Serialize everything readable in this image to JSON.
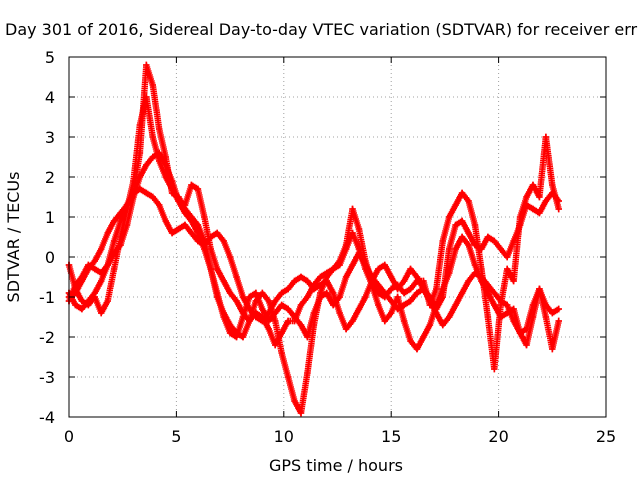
{
  "chart_data": {
    "type": "scatter",
    "title": "Day 301 of 2016, Sidereal Day-to-day VTEC variation (SDTVAR) for receiver err",
    "xlabel": "GPS time / hours",
    "ylabel": "SDTVAR / TECUs",
    "xlim": [
      0,
      25
    ],
    "ylim": [
      -4,
      5
    ],
    "x_ticks": [
      "0",
      "5",
      "10",
      "15",
      "20",
      "25"
    ],
    "y_ticks": [
      "-4",
      "-3",
      "-2",
      "-1",
      "0",
      "1",
      "2",
      "3",
      "4",
      "5"
    ],
    "grid": true,
    "marker": "+",
    "color": "#ff0000",
    "series": [
      {
        "x": [
          0.0,
          0.3,
          0.6,
          0.9,
          1.2,
          1.5,
          1.8,
          2.1,
          2.4,
          2.7,
          3.0,
          3.3,
          3.6,
          3.9,
          4.2,
          4.5,
          4.8,
          5.1,
          5.4,
          5.7,
          6.0,
          6.3,
          6.6,
          6.9,
          7.2,
          7.5,
          7.8,
          8.1,
          8.4,
          8.7,
          9.0,
          9.3,
          9.6,
          9.9,
          10.2,
          10.5,
          10.8,
          11.1,
          11.4,
          11.7,
          12.0,
          12.3,
          12.6,
          12.9,
          13.2,
          13.5,
          13.8,
          14.1,
          14.4,
          14.7,
          15.0,
          15.3,
          15.6,
          15.9,
          16.2,
          16.5,
          16.8,
          17.1,
          17.4,
          17.7,
          18.0,
          18.3,
          18.6,
          18.9,
          19.2,
          19.5,
          19.8,
          20.1,
          20.4,
          20.7,
          21.0,
          21.3,
          21.6,
          21.9,
          22.2,
          22.5,
          22.8
        ],
        "y": [
          -1.0,
          -0.9,
          -0.6,
          -0.3,
          -0.1,
          0.2,
          0.6,
          0.9,
          1.1,
          1.3,
          1.6,
          2.6,
          4.8,
          4.3,
          3.2,
          2.5,
          1.6,
          1.5,
          1.2,
          1.0,
          0.8,
          0.4,
          -0.3,
          -1.0,
          -1.4,
          -1.7,
          -1.9,
          -2.0,
          -1.6,
          -1.1,
          -0.9,
          -1.1,
          -1.6,
          -2.4,
          -3.0,
          -3.6,
          -3.9,
          -2.9,
          -1.7,
          -0.9,
          -0.5,
          -0.3,
          -0.1,
          0.3,
          1.2,
          0.7,
          -0.1,
          -0.6,
          -0.9,
          -1.0,
          -0.8,
          -0.7,
          -0.9,
          -0.8,
          -0.6,
          -0.6,
          -1.2,
          -0.8,
          0.4,
          1.0,
          1.3,
          1.6,
          1.4,
          0.8,
          -0.3,
          -1.5,
          -2.8,
          -1.2,
          -0.3,
          -0.6,
          1.0,
          1.5,
          1.8,
          1.5,
          3.0,
          1.8,
          1.2
        ]
      },
      {
        "x": [
          0.0,
          0.3,
          0.6,
          0.9,
          1.2,
          1.5,
          1.8,
          2.1,
          2.4,
          2.7,
          3.0,
          3.3,
          3.6,
          3.9,
          4.2,
          4.5,
          4.8,
          5.1,
          5.4,
          5.7,
          6.0,
          6.3,
          6.6,
          6.9,
          7.2,
          7.5,
          7.8,
          8.1,
          8.4,
          8.7,
          9.0,
          9.3,
          9.6,
          9.9,
          10.2,
          10.5,
          10.8,
          11.1,
          11.4,
          11.7,
          12.0,
          12.3,
          12.6,
          12.9,
          13.2,
          13.5,
          13.8,
          14.1,
          14.4,
          14.7,
          15.0,
          15.3,
          15.6,
          15.9,
          16.2,
          16.5,
          16.8,
          17.1,
          17.4,
          17.7,
          18.0,
          18.3,
          18.6,
          18.9,
          19.2,
          19.5,
          19.8,
          20.1,
          20.4,
          20.7,
          21.0,
          21.3,
          21.6,
          21.9,
          22.2,
          22.5,
          22.8
        ],
        "y": [
          -0.2,
          -0.8,
          -1.1,
          -1.2,
          -1.0,
          -1.4,
          -1.1,
          -0.3,
          0.5,
          1.2,
          1.9,
          3.3,
          4.0,
          3.0,
          2.4,
          2.0,
          1.7,
          1.4,
          1.3,
          1.8,
          1.7,
          1.0,
          0.2,
          -0.3,
          -0.6,
          -0.9,
          -1.1,
          -1.4,
          -1.6,
          -1.4,
          -1.5,
          -1.8,
          -2.2,
          -1.9,
          -1.6,
          -1.6,
          -1.2,
          -1.0,
          -0.7,
          -0.5,
          -0.4,
          -0.3,
          -0.2,
          0.2,
          0.6,
          0.2,
          -0.3,
          -0.7,
          -1.2,
          -1.6,
          -1.4,
          -1.0,
          -1.6,
          -2.1,
          -2.3,
          -2.0,
          -1.7,
          -1.2,
          -0.8,
          -0.4,
          0.2,
          0.5,
          0.3,
          -0.2,
          -0.6,
          -0.9,
          -1.2,
          -1.5,
          -1.4,
          -1.3,
          -1.9,
          -2.2,
          -1.5,
          -0.8,
          -1.5,
          -2.3,
          -1.6
        ]
      },
      {
        "x": [
          0.0,
          0.3,
          0.6,
          0.9,
          1.2,
          1.5,
          1.8,
          2.1,
          2.4,
          2.7,
          3.0,
          3.3,
          3.6,
          3.9,
          4.2,
          4.5,
          4.8,
          5.1,
          5.4,
          5.7,
          6.0,
          6.3,
          6.6,
          6.9,
          7.2,
          7.5,
          7.8,
          8.1,
          8.4,
          8.7,
          9.0,
          9.3,
          9.6,
          9.9,
          10.2,
          10.5,
          10.8,
          11.1,
          11.4,
          11.7,
          12.0,
          12.3,
          12.6,
          12.9,
          13.2,
          13.5,
          13.8,
          14.1,
          14.4,
          14.7,
          15.0,
          15.3,
          15.6,
          15.9,
          16.2,
          16.5,
          16.8,
          17.1,
          17.4,
          17.7,
          18.0,
          18.3,
          18.6,
          18.9,
          19.2,
          19.5,
          19.8,
          20.1,
          20.4,
          20.7,
          21.0,
          21.3,
          21.6,
          21.9,
          22.2,
          22.5,
          22.8
        ],
        "y": [
          -1.1,
          -0.7,
          -0.5,
          -0.2,
          -0.3,
          -0.4,
          -0.2,
          0.1,
          0.3,
          0.8,
          1.5,
          2.0,
          2.3,
          2.5,
          2.6,
          2.3,
          1.9,
          1.4,
          1.1,
          0.9,
          0.6,
          0.2,
          -0.3,
          -0.9,
          -1.5,
          -1.9,
          -2.0,
          -1.5,
          -1.0,
          -0.9,
          -1.3,
          -1.6,
          -1.4,
          -1.2,
          -1.3,
          -1.5,
          -1.7,
          -2.0,
          -1.4,
          -1.0,
          -0.9,
          -1.2,
          -1.0,
          -0.5,
          -0.2,
          0.1,
          -0.2,
          -0.5,
          -0.7,
          -0.9,
          -1.1,
          -1.3,
          -1.2,
          -1.1,
          -0.9,
          -0.8,
          -1.0,
          -1.3,
          -1.0,
          0.2,
          0.8,
          0.9,
          0.6,
          0.3,
          0.2,
          0.5,
          0.4,
          0.2,
          0.0,
          0.4,
          0.8,
          1.3,
          1.2,
          1.1,
          1.4,
          1.6,
          1.4
        ]
      },
      {
        "x": [
          0.0,
          0.3,
          0.6,
          0.9,
          1.2,
          1.5,
          1.8,
          2.1,
          2.4,
          2.7,
          3.0,
          3.3,
          3.6,
          3.9,
          4.2,
          4.5,
          4.8,
          5.1,
          5.4,
          5.7,
          6.0,
          6.3,
          6.6,
          6.9,
          7.2,
          7.5,
          7.8,
          8.1,
          8.4,
          8.7,
          9.0,
          9.3,
          9.6,
          9.9,
          10.2,
          10.5,
          10.8,
          11.1,
          11.4,
          11.7,
          12.0,
          12.3,
          12.6,
          12.9,
          13.2,
          13.5,
          13.8,
          14.1,
          14.4,
          14.7,
          15.0,
          15.3,
          15.6,
          15.9,
          16.2,
          16.5,
          16.8,
          17.1,
          17.4,
          17.7,
          18.0,
          18.3,
          18.6,
          18.9,
          19.2,
          19.5,
          19.8,
          20.1,
          20.4,
          20.7,
          21.0,
          21.3,
          21.6,
          21.9,
          22.2,
          22.5,
          22.8
        ],
        "y": [
          -0.9,
          -1.2,
          -1.3,
          -1.1,
          -0.9,
          -0.6,
          -0.2,
          0.4,
          0.9,
          1.3,
          1.6,
          1.7,
          1.6,
          1.5,
          1.3,
          0.9,
          0.6,
          0.7,
          0.8,
          0.6,
          0.4,
          0.3,
          0.5,
          0.6,
          0.4,
          0.0,
          -0.5,
          -1.0,
          -1.3,
          -1.5,
          -1.6,
          -1.4,
          -1.1,
          -0.9,
          -0.8,
          -0.6,
          -0.5,
          -0.6,
          -0.8,
          -0.7,
          -0.6,
          -0.9,
          -1.4,
          -1.8,
          -1.6,
          -1.3,
          -1.0,
          -0.6,
          -0.3,
          -0.2,
          -0.5,
          -0.8,
          -0.6,
          -0.3,
          -0.5,
          -0.8,
          -1.1,
          -1.4,
          -1.7,
          -1.5,
          -1.2,
          -0.9,
          -0.6,
          -0.4,
          -0.5,
          -0.7,
          -0.9,
          -1.1,
          -1.2,
          -1.6,
          -1.9,
          -1.8,
          -1.2,
          -0.8,
          -1.2,
          -1.4,
          -1.3
        ]
      }
    ]
  }
}
